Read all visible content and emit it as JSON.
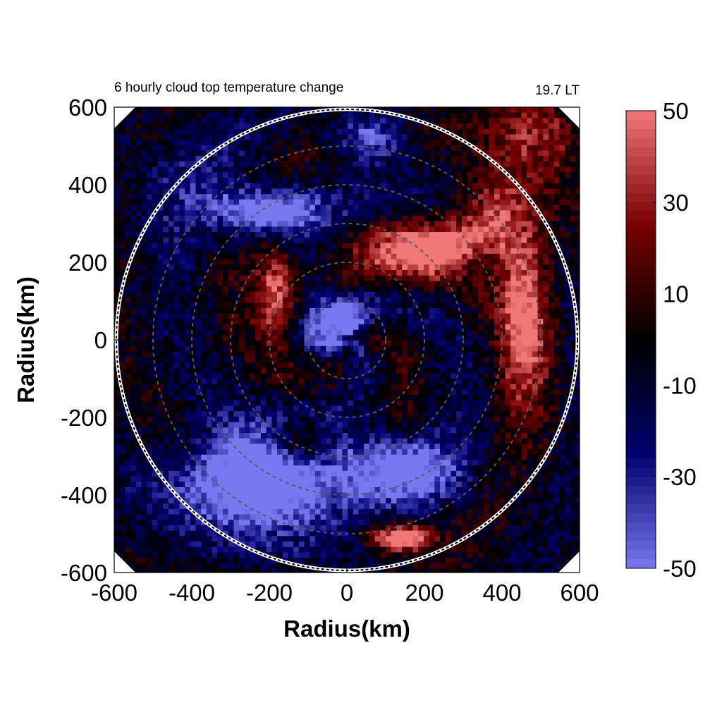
{
  "chart_data": {
    "type": "heatmap",
    "title": "6 hourly cloud top temperature change",
    "time_label": "19.7 LT",
    "xlabel": "Radius(km)",
    "ylabel": "Radius(km)",
    "xlim": [
      -600,
      600
    ],
    "ylim": [
      -600,
      600
    ],
    "x_ticks": [
      "-600",
      "-400",
      "-200",
      "0",
      "200",
      "400",
      "600"
    ],
    "y_ticks": [
      "600",
      "400",
      "200",
      "0",
      "-200",
      "-400",
      "-600"
    ],
    "colorbar": {
      "range": [
        -50,
        50
      ],
      "ticks": [
        "50",
        "30",
        "10",
        "-10",
        "-30",
        "-50"
      ],
      "colors": {
        "min": "#7878f0",
        "low": "#00006e",
        "zero": "#000000",
        "high": "#780000",
        "max": "#f07878"
      }
    },
    "outer_circle_radius_km": 600,
    "dashed_ring_radii_km": [
      100,
      200,
      300,
      400,
      500
    ],
    "features": [
      {
        "label": "warming arc",
        "center_km": [
          250,
          200
        ],
        "value": 45
      },
      {
        "label": "eastern warming band",
        "center_km": [
          420,
          0
        ],
        "value": 40
      },
      {
        "label": "southern cooling region",
        "center_km": [
          -200,
          -300
        ],
        "value": -50
      },
      {
        "label": "central cooling",
        "center_km": [
          -30,
          50
        ],
        "value": -45
      },
      {
        "label": "south warming patch",
        "center_km": [
          150,
          -510
        ],
        "value": 40
      }
    ]
  }
}
